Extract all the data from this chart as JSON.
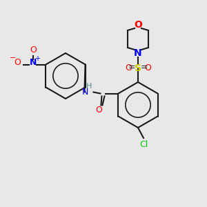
{
  "bg_color": "#e8e8e8",
  "bond_color": "#1a1a1a",
  "atom_colors": {
    "O": "#ff0000",
    "N": "#0000ff",
    "S": "#cccc00",
    "Cl": "#00cc00",
    "H": "#4a8a8a",
    "N+": "#0000ff",
    "O-": "#ff0000"
  },
  "figsize": [
    3.0,
    3.0
  ],
  "dpi": 100
}
